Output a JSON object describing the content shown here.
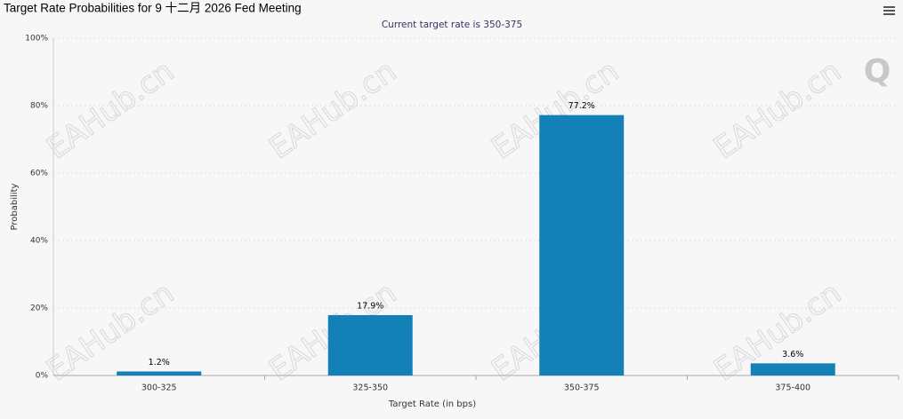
{
  "chart_data": {
    "type": "bar",
    "title": "Target Rate Probabilities for 9 十二月 2026 Fed Meeting",
    "subtitle": "Current target rate is 350-375",
    "x_label": "Target Rate (in bps)",
    "y_label": "Probability",
    "watermark": "EAHub.cn",
    "logo": "Q",
    "categories": [
      "300-325",
      "325-350",
      "350-375",
      "375-400"
    ],
    "values": [
      1.2,
      17.9,
      77.2,
      3.6
    ],
    "value_labels": [
      "1.2%",
      "17.9%",
      "77.2%",
      "3.6%"
    ],
    "color": "#1380b8",
    "ylim": [
      0,
      100
    ],
    "yticks": [
      {
        "value": 0,
        "label": "0%"
      },
      {
        "value": 20,
        "label": "20%"
      },
      {
        "value": 40,
        "label": "40%"
      },
      {
        "value": 60,
        "label": "60%"
      },
      {
        "value": 80,
        "label": "80%"
      },
      {
        "value": 100,
        "label": "100%"
      }
    ],
    "grid": true
  }
}
